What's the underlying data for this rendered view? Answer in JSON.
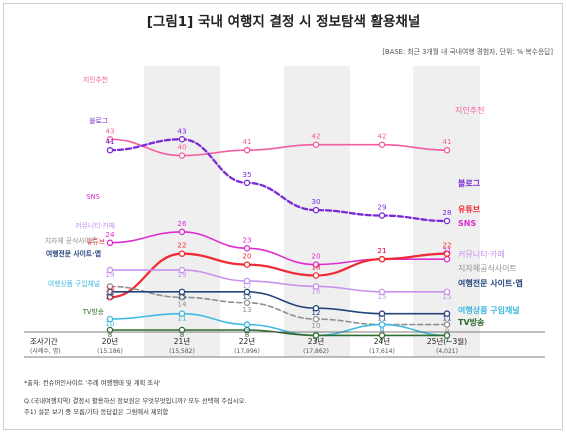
{
  "title": "[그림1] 국내 여행지 결정 시 정보탐색 활용채널",
  "base_note": "[BASE: 최근 3개월 내 국내여행 경험자, 단위: % 복수응답]",
  "footnotes": {
    "source": "*출처: 컨슈머인사이트 '주례 여행행태 및 계획 조사'",
    "question": "Q.(국내여행지역) 결정시 활용하신 정보원은 무엇무엇입니까? 모두 선택해 주십시오.",
    "note": "주1) 설문 보기 중 모름/기타 응답값은 그림에서 제외함"
  },
  "chart_data": {
    "type": "line",
    "x_header": "조사기간",
    "x_subheader": "(사례수, 명)",
    "categories": [
      "20년",
      "21년",
      "22년",
      "23년",
      "24년",
      "25년(~3월)"
    ],
    "sample_sizes": [
      "(15,186)",
      "(15,582)",
      "(17,996)",
      "(17,862)",
      "(17,614)",
      "(4,021)"
    ],
    "ylim": [
      0,
      46
    ],
    "series": [
      {
        "name": "지인추천",
        "right_label": "지인추천",
        "values": [
          43,
          40,
          41,
          42,
          42,
          41
        ],
        "color": "#f45ea0",
        "dash": false,
        "bold": false
      },
      {
        "name": "블로그",
        "right_label": "블로그",
        "values": [
          41,
          43,
          35,
          30,
          29,
          28
        ],
        "color": "#7a2bd6",
        "dash": true,
        "bold": true
      },
      {
        "name": "SNS",
        "right_label": "SNS",
        "values": [
          24,
          26,
          23,
          20,
          21,
          21
        ],
        "color": "#dd2ccf",
        "dash": false,
        "bold": false
      },
      {
        "name": "유튜브",
        "right_label": "유튜브",
        "values": [
          14,
          22,
          20,
          18,
          21,
          22
        ],
        "color": "#ef2d36",
        "dash": false,
        "bold": true
      },
      {
        "name": "커뮤니티·카페",
        "right_label": "커뮤니티·카페",
        "values": [
          19,
          19,
          17,
          16,
          15,
          15
        ],
        "color": "#c792ec",
        "dash": false,
        "bold": false
      },
      {
        "name": "지자체 공식사이트",
        "right_label": "지자체공식사이트",
        "values": [
          16,
          14,
          13,
          10,
          9,
          9
        ],
        "color": "#909090",
        "dash": true,
        "bold": false
      },
      {
        "name": "여행전문 사이트·앱",
        "right_label": "여행전문 사이트·앱",
        "values": [
          15,
          15,
          15,
          12,
          11,
          11
        ],
        "color": "#25467a",
        "dash": false,
        "bold": false
      },
      {
        "name": "여행상품 구입채널",
        "right_label": "여행상품 구입채널",
        "values": [
          10,
          11,
          9,
          7,
          9,
          7
        ],
        "color": "#3fb9e2",
        "dash": false,
        "bold": false
      },
      {
        "name": "TV방송",
        "right_label": "TV방송",
        "values": [
          8,
          8,
          8,
          7,
          7,
          7
        ],
        "color": "#2e6b2e",
        "dash": false,
        "bold": false
      }
    ],
    "value_labels": [
      [
        "43",
        "40",
        "41",
        "42",
        "42",
        "41"
      ],
      [
        "41",
        "43",
        "35",
        "30",
        "29",
        "28"
      ],
      [
        "24",
        "26",
        "23",
        "20",
        "21",
        "21"
      ],
      [
        "14",
        "22",
        "20",
        "18",
        "21",
        "22"
      ],
      [
        "19",
        "19",
        "17",
        "16",
        "15",
        "15"
      ],
      [
        "16",
        "14",
        "13",
        "10",
        "9",
        "9"
      ],
      [
        "15",
        "15",
        "15",
        "12",
        "11",
        "11"
      ],
      [
        "10",
        "11",
        "9",
        "7",
        "9",
        "7"
      ],
      [
        "8",
        "8",
        "8",
        "7",
        "7",
        "7"
      ]
    ]
  }
}
